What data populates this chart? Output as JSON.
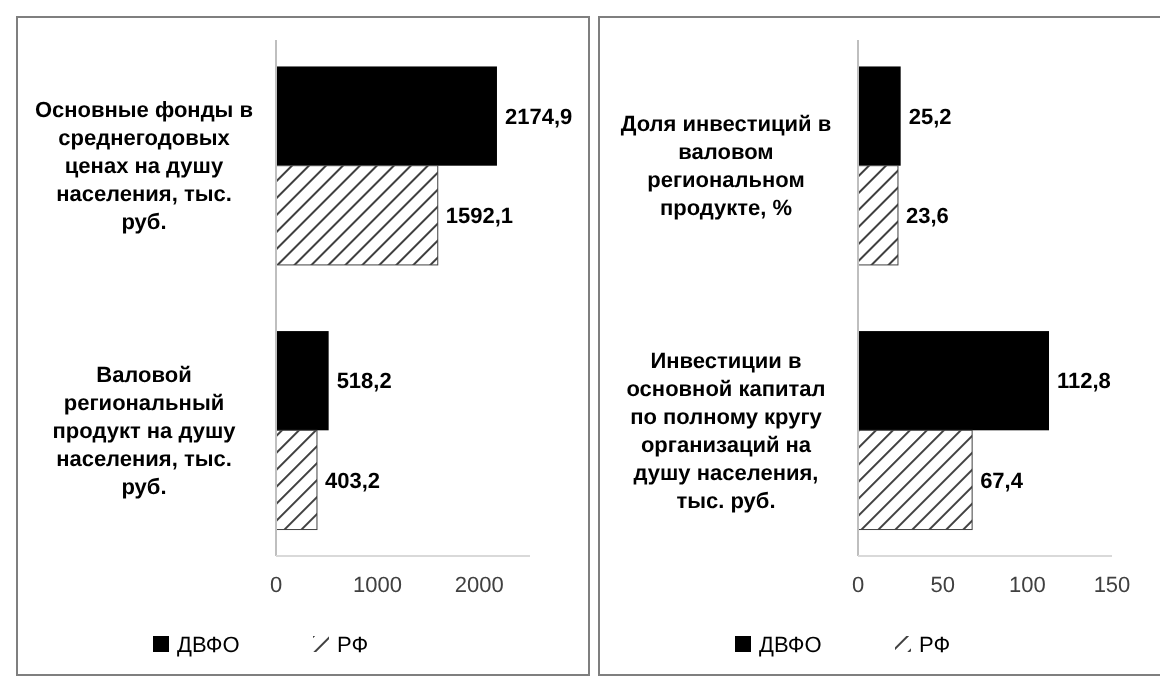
{
  "chart_data": [
    {
      "type": "bar",
      "orientation": "horizontal",
      "categories": [
        "Основные фонды в среднегодовых ценах на душу населения, тыс. руб.",
        "Валовой региональный продукт на душу населения, тыс. руб."
      ],
      "series": [
        {
          "name": "ДВФО",
          "color": "#000000",
          "values": [
            2174.9,
            518.2
          ],
          "value_labels": [
            "2174,9",
            "518,2"
          ]
        },
        {
          "name": "РФ",
          "color": "#404040",
          "values": [
            1592.1,
            403.2
          ],
          "value_labels": [
            "1592,1",
            "403,2"
          ]
        }
      ],
      "xlim": [
        0,
        2500
      ],
      "xticks": [
        0,
        1000,
        2000
      ],
      "legend": "bottom",
      "grid": false
    },
    {
      "type": "bar",
      "orientation": "horizontal",
      "categories": [
        "Доля инвестиций в валовом региональном продукте, %",
        "Инвестиции в основной капитал по полному кругу организаций на душу населения, тыс. руб."
      ],
      "series": [
        {
          "name": "ДВФО",
          "color": "#000000",
          "values": [
            25.2,
            112.8
          ],
          "value_labels": [
            "25,2",
            "112,8"
          ]
        },
        {
          "name": "РФ",
          "color": "#404040",
          "values": [
            23.6,
            67.4
          ],
          "value_labels": [
            "23,6",
            "67,4"
          ]
        }
      ],
      "xlim": [
        0,
        150
      ],
      "xticks": [
        0,
        50,
        100,
        150
      ],
      "legend": "bottom",
      "grid": false
    }
  ]
}
